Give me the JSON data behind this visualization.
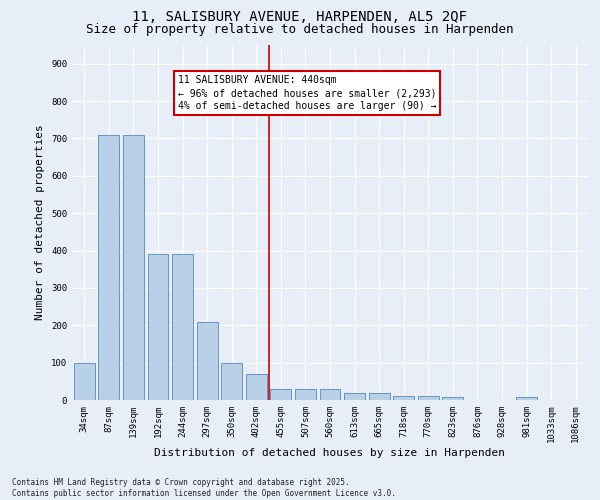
{
  "title": "11, SALISBURY AVENUE, HARPENDEN, AL5 2QF",
  "subtitle": "Size of property relative to detached houses in Harpenden",
  "xlabel": "Distribution of detached houses by size in Harpenden",
  "ylabel": "Number of detached properties",
  "categories": [
    "34sqm",
    "87sqm",
    "139sqm",
    "192sqm",
    "244sqm",
    "297sqm",
    "350sqm",
    "402sqm",
    "455sqm",
    "507sqm",
    "560sqm",
    "613sqm",
    "665sqm",
    "718sqm",
    "770sqm",
    "823sqm",
    "876sqm",
    "928sqm",
    "981sqm",
    "1033sqm",
    "1086sqm"
  ],
  "values": [
    100,
    710,
    710,
    390,
    390,
    210,
    100,
    70,
    30,
    30,
    30,
    20,
    20,
    10,
    10,
    8,
    0,
    0,
    7,
    0,
    0
  ],
  "bar_color": "#b8d0e8",
  "bar_edge_color": "#5588bb",
  "marker_line_index": 8,
  "marker_label": "11 SALISBURY AVENUE: 440sqm",
  "annotation_line1": "← 96% of detached houses are smaller (2,293)",
  "annotation_line2": "4% of semi-detached houses are larger (90) →",
  "annotation_box_color": "#ffffff",
  "annotation_box_edge": "#cc0000",
  "marker_line_color": "#cc0000",
  "ylim": [
    0,
    950
  ],
  "yticks": [
    0,
    100,
    200,
    300,
    400,
    500,
    600,
    700,
    800,
    900
  ],
  "background_color": "#e8eef7",
  "footer_line1": "Contains HM Land Registry data © Crown copyright and database right 2025.",
  "footer_line2": "Contains public sector information licensed under the Open Government Licence v3.0.",
  "title_fontsize": 10,
  "subtitle_fontsize": 9,
  "tick_fontsize": 6.5,
  "ylabel_fontsize": 8,
  "xlabel_fontsize": 8,
  "annot_fontsize": 7,
  "footer_fontsize": 5.5
}
